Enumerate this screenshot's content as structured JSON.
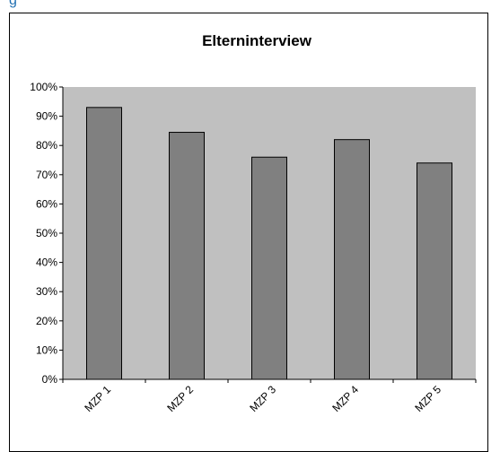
{
  "page": {
    "top_fragment": "g"
  },
  "chart_data": {
    "type": "bar",
    "title": "Elterninterview",
    "xlabel": "",
    "ylabel": "",
    "categories": [
      "MZP 1",
      "MZP 2",
      "MZP 3",
      "MZP 4",
      "MZP 5"
    ],
    "values": [
      93,
      84.5,
      76,
      82,
      74
    ],
    "ylim": [
      0,
      100
    ],
    "yticks": [
      "0%",
      "10%",
      "20%",
      "30%",
      "40%",
      "50%",
      "60%",
      "70%",
      "80%",
      "90%",
      "100%"
    ],
    "grid": false,
    "legend": "none",
    "colors": {
      "plot_bg": "#c0c0c0",
      "bar": "#808080",
      "bar_edge": "#000000"
    }
  }
}
